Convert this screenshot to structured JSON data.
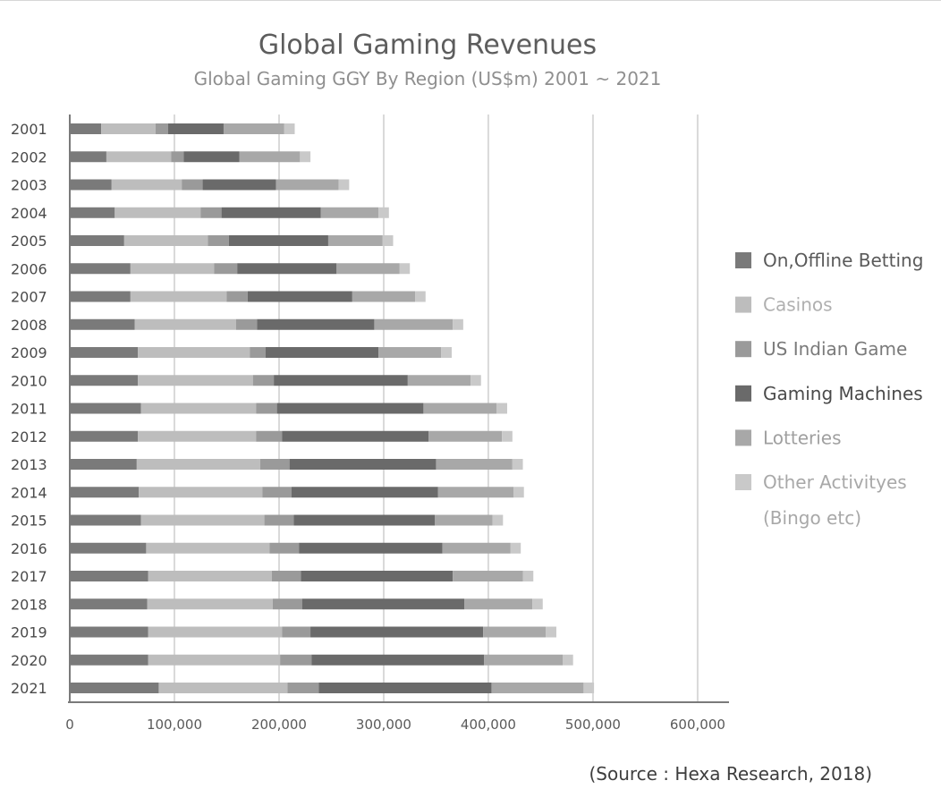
{
  "chart_data": {
    "type": "bar",
    "orientation": "horizontal",
    "stacked": true,
    "title": "Global Gaming Revenues",
    "subtitle": "Global Gaming GGY By Region (US$m) 2001 ~ 2021",
    "source": "(Source : Hexa Research, 2018)",
    "categories": [
      "2001",
      "2002",
      "2003",
      "2004",
      "2005",
      "2006",
      "2007",
      "2008",
      "2009",
      "2010",
      "2011",
      "2012",
      "2013",
      "2014",
      "2015",
      "2016",
      "2017",
      "2018",
      "2019",
      "2020",
      "2021"
    ],
    "xlim": [
      0,
      630000
    ],
    "xticks": [
      "0",
      "100,000",
      "200,000",
      "300,000",
      "400,000",
      "500,000",
      "600,000"
    ],
    "xtick_values": [
      0,
      100000,
      200000,
      300000,
      400000,
      500000,
      600000
    ],
    "grid": "vertical",
    "legend_position": "right",
    "series": [
      {
        "name": "On,Offline Betting",
        "color": "#7a7a7a",
        "values": [
          30000,
          35000,
          40000,
          43000,
          52000,
          58000,
          58000,
          62000,
          65000,
          65000,
          68000,
          65000,
          64000,
          66000,
          68000,
          73000,
          75000,
          74000,
          75000,
          75000,
          85000
        ]
      },
      {
        "name": "Casinos",
        "color": "#bdbdbd",
        "values": [
          52000,
          62000,
          67000,
          82000,
          80000,
          80000,
          92000,
          97000,
          107000,
          110000,
          110000,
          113000,
          118000,
          118000,
          118000,
          118000,
          118000,
          120000,
          128000,
          126000,
          123000
        ]
      },
      {
        "name": "US Indian Game",
        "color": "#9a9a9a",
        "values": [
          12000,
          12000,
          20000,
          20000,
          20000,
          22000,
          20000,
          20000,
          15000,
          20000,
          20000,
          25000,
          28000,
          28000,
          28000,
          28000,
          28000,
          28000,
          27000,
          30000,
          30000
        ]
      },
      {
        "name": "Gaming Machines",
        "color": "#6a6a6a",
        "values": [
          53000,
          53000,
          70000,
          95000,
          95000,
          95000,
          100000,
          112000,
          108000,
          128000,
          140000,
          140000,
          140000,
          140000,
          135000,
          137000,
          145000,
          155000,
          165000,
          165000,
          165000
        ]
      },
      {
        "name": "Lotteries",
        "color": "#a8a8a8",
        "values": [
          58000,
          58000,
          60000,
          55000,
          52000,
          60000,
          60000,
          75000,
          60000,
          60000,
          70000,
          70000,
          73000,
          72000,
          55000,
          65000,
          67000,
          65000,
          60000,
          75000,
          88000
        ]
      },
      {
        "name": "Other Activityes (Bingo etc)",
        "name_lines": [
          "Other Activityes",
          "(Bingo etc)"
        ],
        "color": "#c9c9c9",
        "values": [
          10000,
          10000,
          10000,
          10000,
          10000,
          10000,
          10000,
          10000,
          10000,
          10000,
          10000,
          10000,
          10000,
          10000,
          10000,
          10000,
          10000,
          10000,
          10000,
          10000,
          10000
        ]
      }
    ],
    "legend_text_colors": [
      "#5a5a5a",
      "#b0b0b0",
      "#7a7a7a",
      "#4a4a4a",
      "#a0a0a0",
      "#a8a8a8"
    ]
  }
}
